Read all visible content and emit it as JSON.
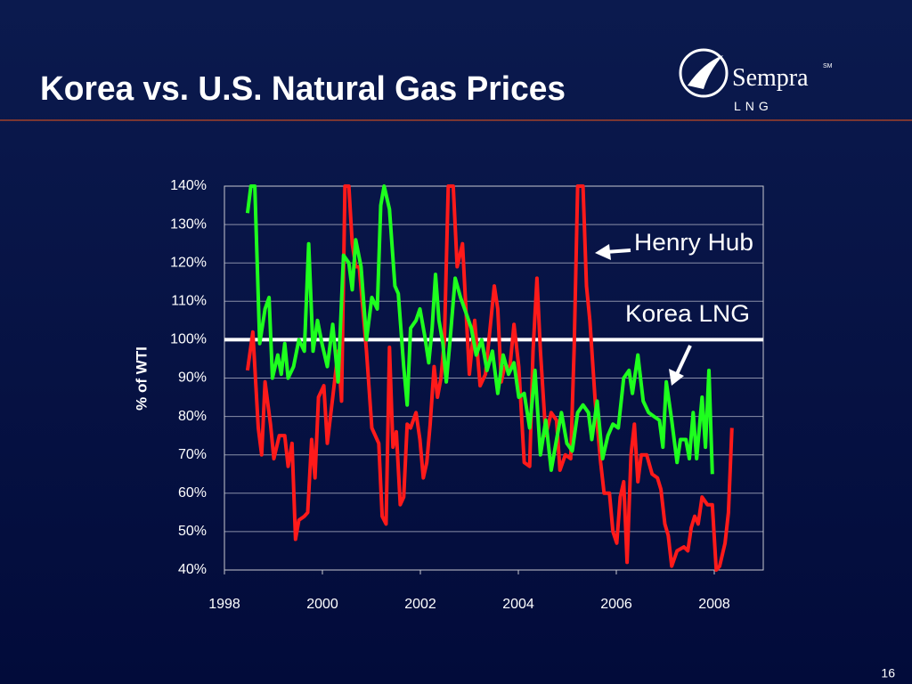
{
  "slide": {
    "title": "Korea vs. U.S. Natural Gas Prices",
    "logo": "Sempra",
    "logo_mark": "SM",
    "logo_sub": "LNG",
    "page_number": "16"
  },
  "chart_data": {
    "type": "line",
    "y_label": "% of WTI",
    "xlim": [
      1998,
      2009
    ],
    "xticks": [
      1998,
      2000,
      2002,
      2004,
      2006,
      2008
    ],
    "ylim": [
      40,
      140
    ],
    "yticks": [
      {
        "value": 40,
        "label": "40%"
      },
      {
        "value": 50,
        "label": "50%"
      },
      {
        "value": 60,
        "label": "60%"
      },
      {
        "value": 70,
        "label": "70%"
      },
      {
        "value": 80,
        "label": "80%"
      },
      {
        "value": 90,
        "label": "90%"
      },
      {
        "value": 100,
        "label": "100%"
      },
      {
        "value": 110,
        "label": "110%"
      },
      {
        "value": 120,
        "label": "120%"
      },
      {
        "value": 130,
        "label": "130%"
      },
      {
        "value": 140,
        "label": "140%"
      }
    ],
    "grid": true,
    "reference_line": 100,
    "reference_color": "#ffffff",
    "series": [
      {
        "name": "Henry Hub",
        "color": "#ff1a1a",
        "x": [
          1998.47,
          1998.58,
          1998.69,
          1998.76,
          1998.83,
          1998.94,
          1999.01,
          1999.12,
          1999.23,
          1999.3,
          1999.38,
          1999.45,
          1999.52,
          1999.63,
          1999.7,
          1999.78,
          1999.85,
          1999.92,
          2000.03,
          2000.1,
          2000.21,
          2000.32,
          2000.39,
          2000.46,
          2000.54,
          2000.61,
          2000.68,
          2000.75,
          2000.9,
          2001.01,
          2001.15,
          2001.22,
          2001.3,
          2001.37,
          2001.44,
          2001.51,
          2001.59,
          2001.66,
          2001.73,
          2001.8,
          2001.91,
          2001.99,
          2002.06,
          2002.13,
          2002.2,
          2002.28,
          2002.35,
          2002.42,
          2002.49,
          2002.57,
          2002.67,
          2002.75,
          2002.86,
          2003.0,
          2003.11,
          2003.22,
          2003.33,
          2003.43,
          2003.51,
          2003.58,
          2003.65,
          2003.72,
          2003.83,
          2003.91,
          2004.01,
          2004.12,
          2004.23,
          2004.3,
          2004.38,
          2004.45,
          2004.56,
          2004.67,
          2004.78,
          2004.85,
          2004.96,
          2005.07,
          2005.14,
          2005.21,
          2005.32,
          2005.39,
          2005.46,
          2005.57,
          2005.68,
          2005.75,
          2005.86,
          2005.93,
          2006.01,
          2006.08,
          2006.15,
          2006.22,
          2006.3,
          2006.37,
          2006.44,
          2006.51,
          2006.62,
          2006.73,
          2006.84,
          2006.91,
          2006.99,
          2007.06,
          2007.13,
          2007.24,
          2007.38,
          2007.46,
          2007.53,
          2007.6,
          2007.67,
          2007.75,
          2007.86,
          2007.96,
          2008.04,
          2008.11,
          2008.22,
          2008.29,
          2008.36
        ],
        "values": [
          92,
          102,
          77,
          70,
          89,
          78,
          69,
          75,
          75,
          67,
          73,
          48,
          53,
          54,
          55,
          74,
          64,
          85,
          88,
          73,
          85,
          97,
          84,
          140,
          140,
          125,
          119,
          119,
          97,
          77,
          73,
          54,
          52,
          98,
          72,
          76,
          57,
          59,
          78,
          77,
          81,
          74,
          64,
          68,
          78,
          93,
          85,
          90,
          100,
          140,
          140,
          119,
          125,
          91,
          105,
          88,
          91,
          104,
          114,
          108,
          89,
          93,
          93,
          104,
          93,
          68,
          67,
          97,
          116,
          97,
          75,
          81,
          79,
          66,
          70,
          69,
          98,
          140,
          140,
          114,
          105,
          84,
          68,
          60,
          60,
          50,
          47,
          59,
          63,
          42,
          70,
          78,
          63,
          70,
          70,
          65,
          64,
          61,
          52,
          49,
          41,
          45,
          46,
          45,
          51,
          54,
          52,
          59,
          57,
          57,
          40,
          41,
          47,
          55,
          77
        ]
      },
      {
        "name": "Korea LNG",
        "color": "#1eff1e",
        "x": [
          1998.47,
          1998.54,
          1998.62,
          1998.72,
          1998.83,
          1998.91,
          1998.98,
          1999.09,
          1999.16,
          1999.23,
          1999.3,
          1999.41,
          1999.52,
          1999.63,
          1999.72,
          1999.81,
          1999.9,
          1999.99,
          2000.1,
          2000.21,
          2000.32,
          2000.43,
          2000.54,
          2000.61,
          2000.68,
          2000.79,
          2000.9,
          2001.01,
          2001.12,
          2001.19,
          2001.26,
          2001.37,
          2001.48,
          2001.55,
          2001.66,
          2001.73,
          2001.8,
          2001.91,
          2001.99,
          2002.09,
          2002.17,
          2002.24,
          2002.31,
          2002.38,
          2002.46,
          2002.53,
          2002.6,
          2002.71,
          2002.82,
          2002.93,
          2003.04,
          2003.14,
          2003.25,
          2003.36,
          2003.47,
          2003.58,
          2003.69,
          2003.8,
          2003.91,
          2004.01,
          2004.12,
          2004.23,
          2004.34,
          2004.45,
          2004.56,
          2004.67,
          2004.78,
          2004.88,
          2004.99,
          2005.1,
          2005.21,
          2005.32,
          2005.43,
          2005.5,
          2005.61,
          2005.72,
          2005.83,
          2005.93,
          2006.04,
          2006.15,
          2006.26,
          2006.33,
          2006.44,
          2006.55,
          2006.66,
          2006.77,
          2006.88,
          2006.95,
          2007.02,
          2007.13,
          2007.24,
          2007.31,
          2007.42,
          2007.49,
          2007.57,
          2007.64,
          2007.75,
          2007.82,
          2007.89,
          2007.96
        ],
        "values": [
          133,
          140,
          140,
          99,
          108,
          111,
          90,
          96,
          91,
          99,
          90,
          93,
          100,
          97,
          125,
          97,
          105,
          99,
          93,
          104,
          89,
          122,
          120,
          113,
          126,
          119,
          100,
          111,
          108,
          135,
          140,
          134,
          114,
          112,
          93,
          83,
          103,
          105,
          108,
          101,
          94,
          103,
          117,
          105,
          99,
          89,
          99,
          116,
          111,
          107,
          103,
          96,
          100,
          92,
          97,
          86,
          96,
          91,
          94,
          85,
          86,
          77,
          92,
          70,
          79,
          66,
          74,
          81,
          73,
          71,
          81,
          83,
          81,
          74,
          84,
          69,
          75,
          78,
          77,
          90,
          92,
          86,
          96,
          84,
          81,
          80,
          79,
          72,
          89,
          79,
          68,
          74,
          74,
          69,
          81,
          69,
          85,
          72,
          92,
          65
        ]
      }
    ]
  }
}
